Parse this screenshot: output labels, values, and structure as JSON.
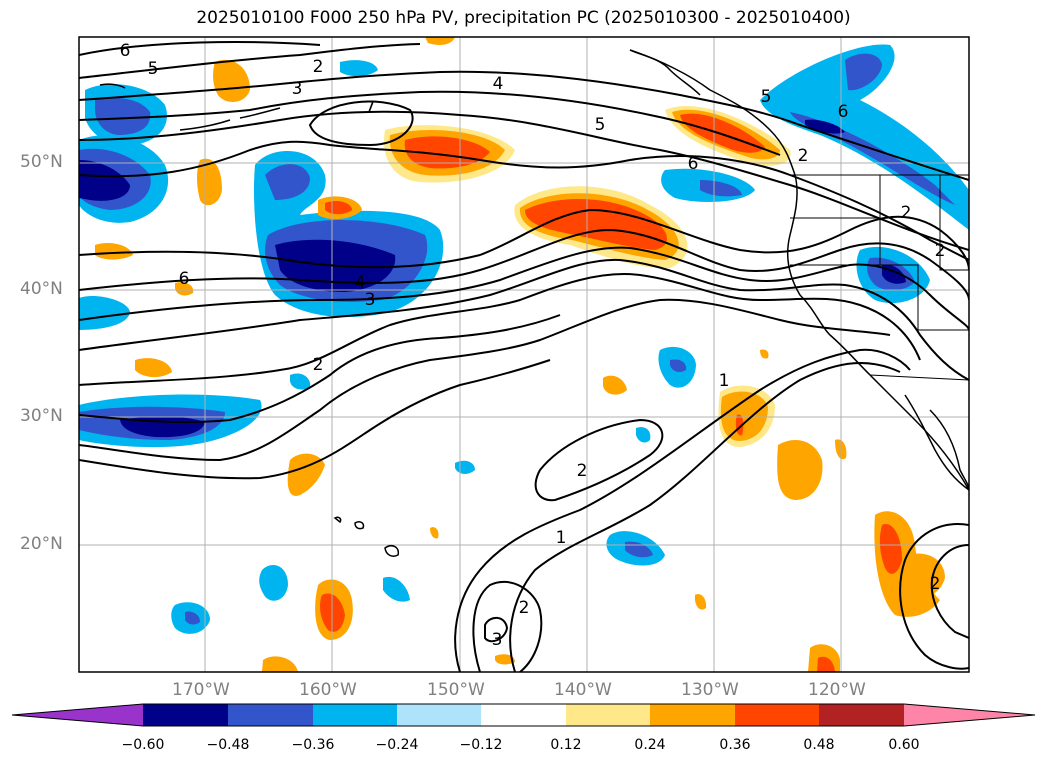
{
  "title": "2025010100 F000 250 hPa PV, precipitation PC (2025010300 - 2025010400)",
  "lat_labels": [
    "50°N",
    "40°N",
    "30°N",
    "20°N"
  ],
  "lon_labels": [
    "170°W",
    "160°W",
    "150°W",
    "140°W",
    "130°W",
    "120°W"
  ],
  "colorbar": {
    "ticks": [
      "−0.60",
      "−0.48",
      "−0.36",
      "−0.24",
      "−0.12",
      "0.12",
      "0.24",
      "0.36",
      "0.48",
      "0.60"
    ],
    "colors": [
      "#9933cc",
      "#000088",
      "#3355cc",
      "#00b4f0",
      "#ade3fb",
      "#ffffff",
      "#ffe88a",
      "#ffa500",
      "#ff4500",
      "#b22222",
      "#ff85a8"
    ]
  },
  "contour_labels": [
    "6",
    "5",
    "2",
    "3",
    "4",
    "7",
    "5",
    "6",
    "5",
    "6",
    "2",
    "2",
    "6",
    "4",
    "3",
    "2",
    "1",
    "2",
    "1",
    "2",
    "3",
    "2",
    "2"
  ],
  "palette": {
    "map_border": "#000000",
    "grid": "#b0b0b0",
    "land": "#000000"
  }
}
